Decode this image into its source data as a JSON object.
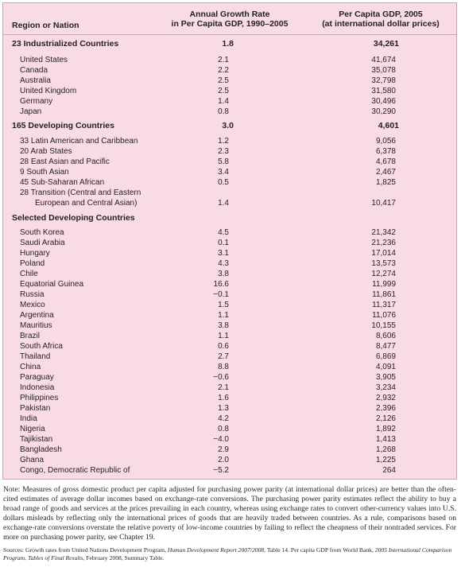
{
  "table": {
    "headers": {
      "region": "Region or Nation",
      "growth_line1": "Annual Growth Rate",
      "growth_line2": "in Per Capita GDP, 1990–2005",
      "gdp_line1": "Per Capita GDP, 2005",
      "gdp_line2": "(at international dollar prices)"
    },
    "rows": [
      {
        "kind": "group",
        "name": "23 Industrialized Countries",
        "growth": "1.8",
        "gdp": "34,261"
      },
      {
        "kind": "item",
        "name": "United States",
        "growth": "2.1",
        "gdp": "41,674"
      },
      {
        "kind": "item",
        "name": "Canada",
        "growth": "2.2",
        "gdp": "35,078"
      },
      {
        "kind": "item",
        "name": "Australia",
        "growth": "2.5",
        "gdp": "32,798"
      },
      {
        "kind": "item",
        "name": "United Kingdom",
        "growth": "2.5",
        "gdp": "31,580"
      },
      {
        "kind": "item",
        "name": "Germany",
        "growth": "1.4",
        "gdp": "30,496"
      },
      {
        "kind": "item",
        "name": "Japan",
        "growth": "0.8",
        "gdp": "30,290"
      },
      {
        "kind": "group",
        "name": "165 Developing Countries",
        "growth": "3.0",
        "gdp": "4,601"
      },
      {
        "kind": "item",
        "name": "33 Latin American and Caribbean",
        "growth": "1.2",
        "gdp": "9,056"
      },
      {
        "kind": "item",
        "name": "20 Arab States",
        "growth": "2.3",
        "gdp": "6,378"
      },
      {
        "kind": "item",
        "name": "28 East Asian and Pacific",
        "growth": "5.8",
        "gdp": "4,678"
      },
      {
        "kind": "item",
        "name": "  9 South Asian",
        "growth": "3.4",
        "gdp": "2,467"
      },
      {
        "kind": "item",
        "name": "45 Sub-Saharan African",
        "growth": "0.5",
        "gdp": "1,825"
      },
      {
        "kind": "item",
        "name": "28 Transition (Central and Eastern",
        "growth": "",
        "gdp": ""
      },
      {
        "kind": "item2",
        "name": "European and Central Asian)",
        "growth": "1.4",
        "gdp": "10,417"
      },
      {
        "kind": "group",
        "name": "Selected Developing Countries",
        "growth": "",
        "gdp": ""
      },
      {
        "kind": "item",
        "name": "South Korea",
        "growth": "4.5",
        "gdp": "21,342"
      },
      {
        "kind": "item",
        "name": "Saudi Arabia",
        "growth": "0.1",
        "gdp": "21,236"
      },
      {
        "kind": "item",
        "name": "Hungary",
        "growth": "3.1",
        "gdp": "17,014"
      },
      {
        "kind": "item",
        "name": "Poland",
        "growth": "4.3",
        "gdp": "13,573"
      },
      {
        "kind": "item",
        "name": "Chile",
        "growth": "3.8",
        "gdp": "12,274"
      },
      {
        "kind": "item",
        "name": "Equatorial Guinea",
        "growth": "16.6",
        "gdp": "11,999"
      },
      {
        "kind": "item",
        "name": "Russia",
        "growth": "−0.1",
        "gdp": "11,861"
      },
      {
        "kind": "item",
        "name": "Mexico",
        "growth": "1.5",
        "gdp": "11,317"
      },
      {
        "kind": "item",
        "name": "Argentina",
        "growth": "1.1",
        "gdp": "11,076"
      },
      {
        "kind": "item",
        "name": "Mauritius",
        "growth": "3.8",
        "gdp": "10,155"
      },
      {
        "kind": "item",
        "name": "Brazil",
        "growth": "1.1",
        "gdp": "8,606"
      },
      {
        "kind": "item",
        "name": "South Africa",
        "growth": "0.6",
        "gdp": "8,477"
      },
      {
        "kind": "item",
        "name": "Thailand",
        "growth": "2.7",
        "gdp": "6,869"
      },
      {
        "kind": "item",
        "name": "China",
        "growth": "8.8",
        "gdp": "4,091"
      },
      {
        "kind": "item",
        "name": "Paraguay",
        "growth": "−0.6",
        "gdp": "3,905"
      },
      {
        "kind": "item",
        "name": "Indonesia",
        "growth": "2.1",
        "gdp": "3,234"
      },
      {
        "kind": "item",
        "name": "Philippines",
        "growth": "1.6",
        "gdp": "2,932"
      },
      {
        "kind": "item",
        "name": "Pakistan",
        "growth": "1.3",
        "gdp": "2,396"
      },
      {
        "kind": "item",
        "name": "India",
        "growth": "4.2",
        "gdp": "2,126"
      },
      {
        "kind": "item",
        "name": "Nigeria",
        "growth": "0.8",
        "gdp": "1,892"
      },
      {
        "kind": "item",
        "name": "Tajikistan",
        "growth": "−4.0",
        "gdp": "1,413"
      },
      {
        "kind": "item",
        "name": "Bangladesh",
        "growth": "2.9",
        "gdp": "1,268"
      },
      {
        "kind": "item",
        "name": "Ghana",
        "growth": "2.0",
        "gdp": "1,225"
      },
      {
        "kind": "item",
        "name": "Congo, Democratic Republic of",
        "growth": "−5.2",
        "gdp": "264"
      }
    ]
  },
  "note": "Note: Measures of gross domestic product per capita adjusted for purchasing power parity (at international dollar prices) are better than the often-cited estimates of average dollar incomes based on exchange-rate conversions. The purchasing power parity estimates reflect the ability to buy a broad range of goods and services at the prices prevailing in each country, whereas using exchange rates to convert other-currency values into U.S. dollars misleads by reflecting only the international prices of goods that are heavily traded between countries. As a rule, comparisons based on exchange-rate conversions overstate the relative poverty of low-income countries by failing to reflect the cheapness of their nontraded services. For more on purchasing power parity, see Chapter 19.",
  "sources": {
    "part1": "Sources: Growth rates from United Nations Development Program, ",
    "italic1": "Human Development Report 2007/2008,",
    "part2": " Table 14. Per capita GDP from World Bank, ",
    "italic2": "2005 International Comparison Program, Tables of Final Results,",
    "part3": " February 2008, Summary Table."
  },
  "colors": {
    "table_background": "#f9dbe6",
    "border": "#c7a4b2",
    "text": "#231f20"
  }
}
